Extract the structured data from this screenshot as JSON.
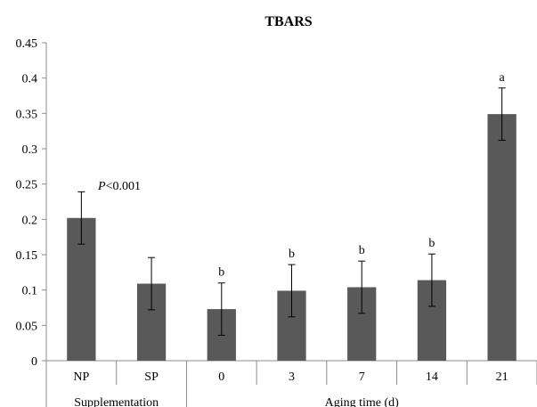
{
  "chart_data": {
    "type": "bar",
    "title": "TBARS",
    "categories": [
      "NP",
      "SP",
      "0",
      "3",
      "7",
      "14",
      "21"
    ],
    "values": [
      0.202,
      0.109,
      0.073,
      0.099,
      0.104,
      0.114,
      0.349
    ],
    "error": [
      0.037,
      0.037,
      0.037,
      0.037,
      0.037,
      0.037,
      0.037
    ],
    "significance_letters": [
      "",
      "",
      "b",
      "b",
      "b",
      "b",
      "a"
    ],
    "groups": [
      {
        "label": "Supplementation",
        "categories": [
          "NP",
          "SP"
        ]
      },
      {
        "label": "Aging time (d)",
        "categories": [
          "0",
          "3",
          "7",
          "14",
          "21"
        ]
      }
    ],
    "annotation": {
      "italic": "P",
      "rest": "<0.001"
    },
    "ylim": [
      0,
      0.45
    ],
    "yticks": [
      "0",
      "0.05",
      "0.1",
      "0.15",
      "0.2",
      "0.25",
      "0.3",
      "0.35",
      "0.4",
      "0.45"
    ],
    "xlabel": "",
    "ylabel": "",
    "grid": false,
    "bar_color": "#595959"
  }
}
